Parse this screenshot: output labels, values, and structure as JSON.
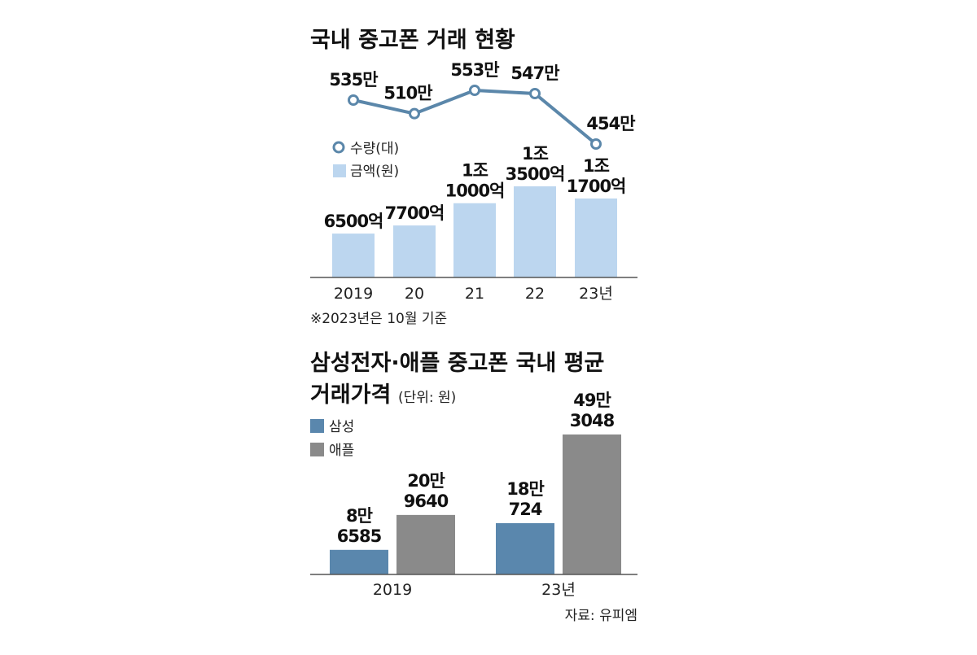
{
  "chart_data": [
    {
      "type": "bar+line",
      "title": "국내 중고폰 거래 현황",
      "categories": [
        "2019",
        "20",
        "21",
        "22",
        "23년"
      ],
      "series": [
        {
          "name": "수량(대)",
          "type": "line",
          "color": "#5b87aa",
          "values": [
            5350000,
            5100000,
            5530000,
            5470000,
            4540000
          ],
          "labels": [
            "535만",
            "510만",
            "553만",
            "547만",
            "454만"
          ]
        },
        {
          "name": "금액(원)",
          "type": "bar",
          "color": "#bcd6ef",
          "values": [
            650000000000,
            770000000000,
            1100000000000,
            1350000000000,
            1170000000000
          ],
          "labels": [
            [
              "6500억"
            ],
            [
              "7700억"
            ],
            [
              "1조",
              "1000억"
            ],
            [
              "1조",
              "3500억"
            ],
            [
              "1조",
              "1700억"
            ]
          ]
        }
      ],
      "note": "※2023년은 10월 기준"
    },
    {
      "type": "bar",
      "title": [
        "삼성전자·애플 중고폰 국내 평균",
        "거래가격"
      ],
      "unit_note": "(단위: 원)",
      "categories": [
        "2019",
        "23년"
      ],
      "series": [
        {
          "name": "삼성",
          "color": "#5a87ad",
          "values": [
            86585,
            180724
          ],
          "labels": [
            [
              "8만",
              "6585"
            ],
            [
              "18만",
              "724"
            ]
          ]
        },
        {
          "name": "애플",
          "color": "#8a8a8a",
          "values": [
            209640,
            493048
          ],
          "labels": [
            [
              "20만",
              "9640"
            ],
            [
              "49만",
              "3048"
            ]
          ]
        }
      ],
      "source": "자료: 유피엠"
    }
  ]
}
